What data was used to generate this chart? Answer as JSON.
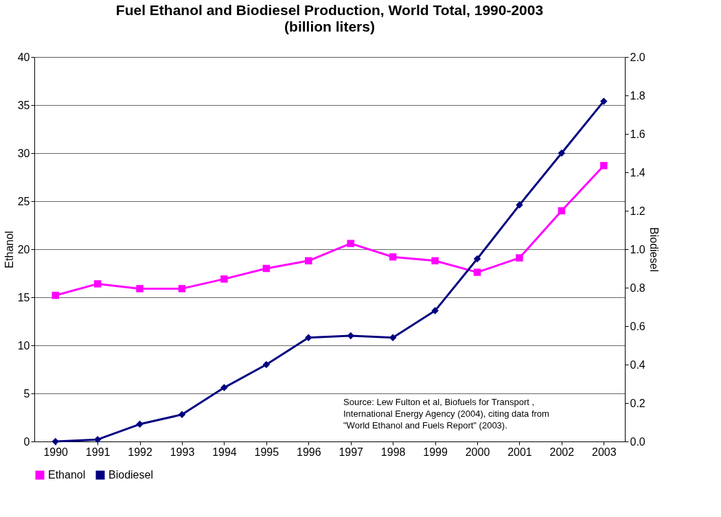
{
  "chart_data": {
    "type": "line",
    "title": "Fuel Ethanol and Biodiesel Production, World Total, 1990-2003",
    "subtitle": "(billion liters)",
    "ylabel": "Ethanol",
    "y2label": "Biodiesel",
    "categories": [
      "1990",
      "1991",
      "1992",
      "1993",
      "1994",
      "1995",
      "1996",
      "1997",
      "1998",
      "1999",
      "2000",
      "2001",
      "2002",
      "2003"
    ],
    "series": [
      {
        "name": "Ethanol",
        "color": "#ff00ff",
        "marker": "square",
        "values": [
          15.2,
          16.4,
          15.9,
          15.9,
          16.9,
          18.0,
          18.8,
          20.6,
          19.2,
          18.8,
          17.6,
          19.1,
          24.0,
          28.7
        ]
      },
      {
        "name": "Biodiesel",
        "color": "#000080",
        "marker": "diamond",
        "axis": "y2",
        "values": [
          0.0,
          0.01,
          0.09,
          0.14,
          0.28,
          0.4,
          0.54,
          0.55,
          0.54,
          0.68,
          0.95,
          1.23,
          1.5,
          1.77
        ]
      }
    ],
    "ylim": [
      0,
      40
    ],
    "yticks": [
      0,
      5,
      10,
      15,
      20,
      25,
      30,
      35,
      40
    ],
    "y2lim": [
      0,
      2.0
    ],
    "y2ticks": [
      {
        "value": 0,
        "label": "0.0"
      },
      {
        "value": 0.2,
        "label": "0.2"
      },
      {
        "value": 0.4,
        "label": "0.4"
      },
      {
        "value": 0.6,
        "label": "0.6"
      },
      {
        "value": 0.8,
        "label": "0.8"
      },
      {
        "value": 1.0,
        "label": "1.0"
      },
      {
        "value": 1.2,
        "label": "1.2"
      },
      {
        "value": 1.4,
        "label": "1.4"
      },
      {
        "value": 1.6,
        "label": "1.6"
      },
      {
        "value": 1.8,
        "label": "1.8"
      },
      {
        "value": 2.0,
        "label": "2.0"
      }
    ],
    "grid": "y",
    "legend": "bottom left",
    "annotations": [
      "Source: Lew Fulton et al, Biofuels for Transport ,\nInternational Energy Agency (2004), citing data from\n\"World Ethanol and Fuels Report\" (2003)."
    ]
  }
}
